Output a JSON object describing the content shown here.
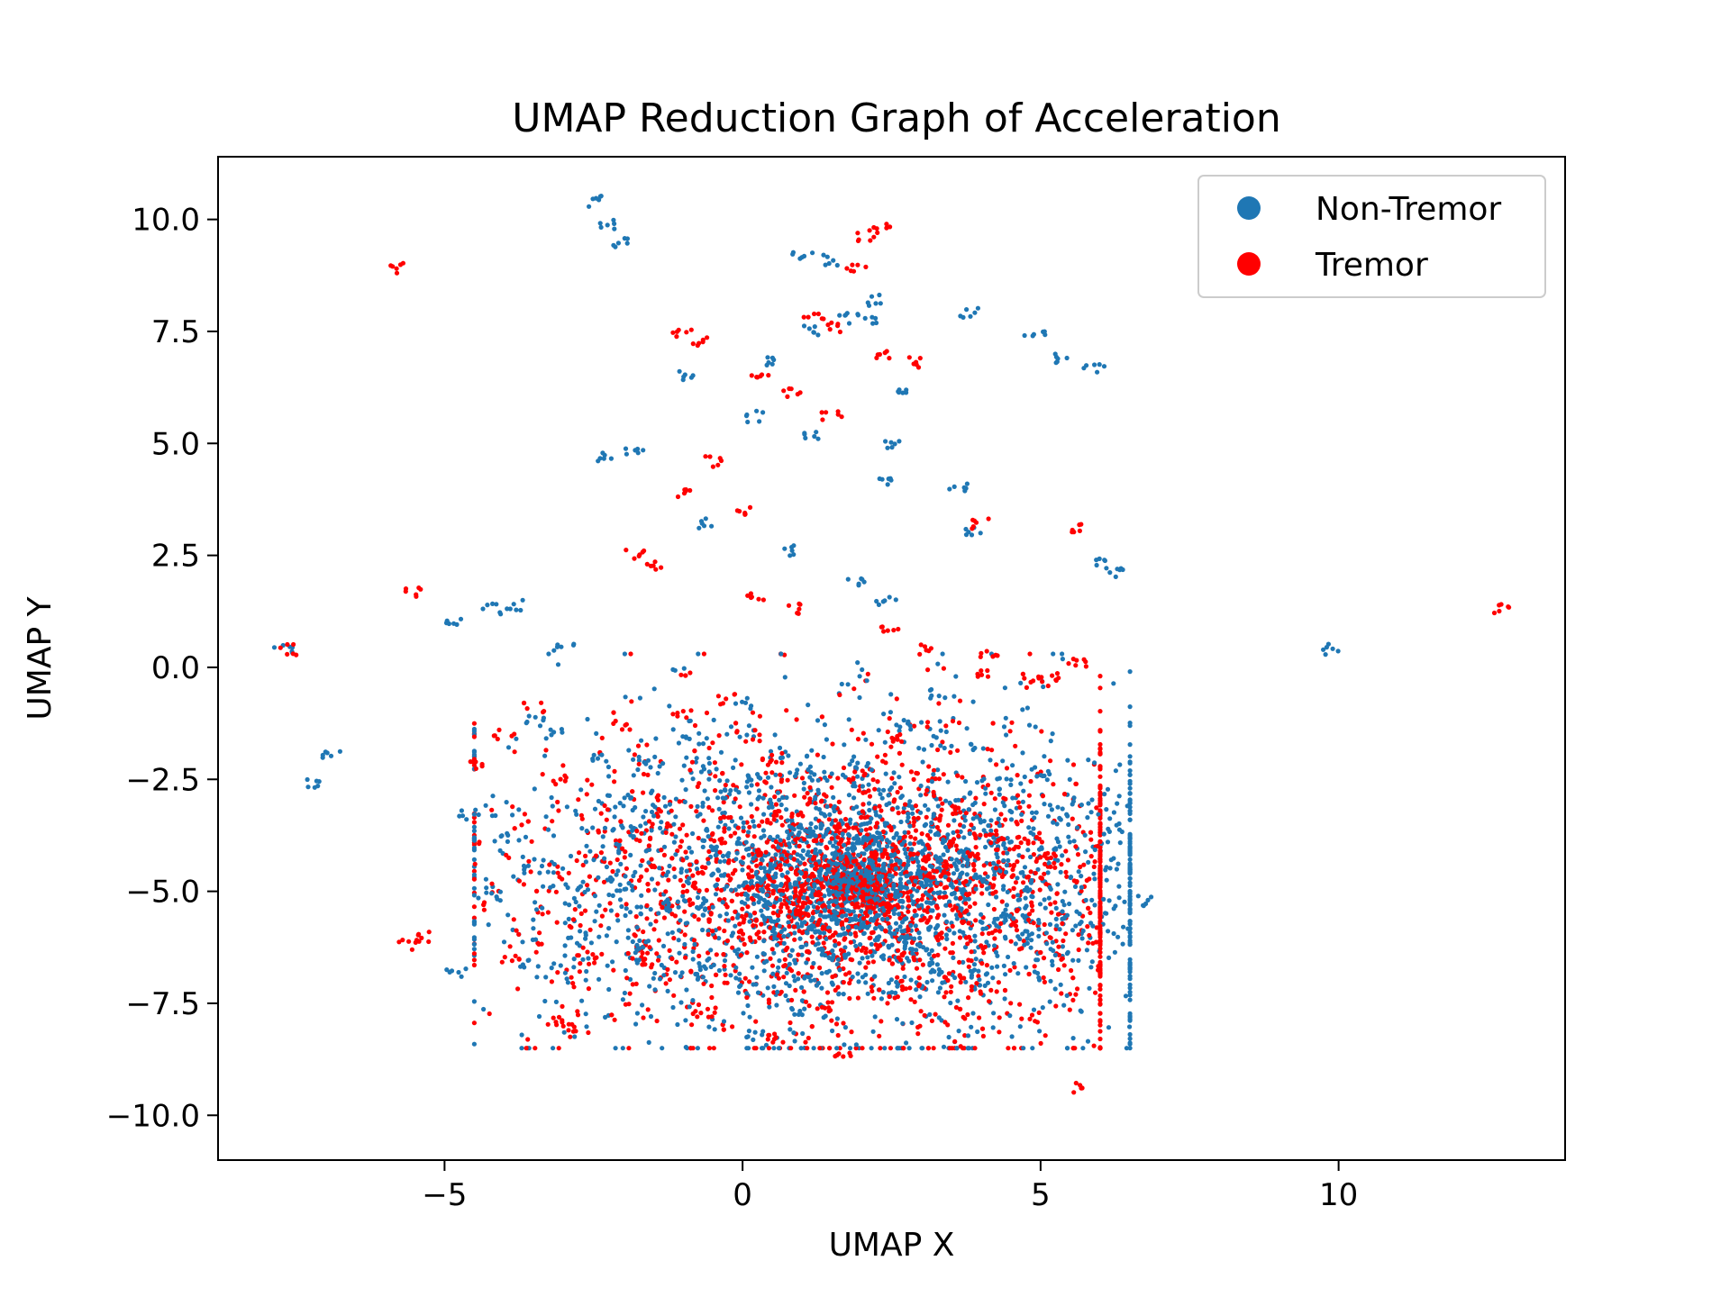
{
  "chart_data": {
    "type": "scatter",
    "title": "UMAP Reduction Graph of Acceleration",
    "xlabel": "UMAP X",
    "ylabel": "UMAP Y",
    "xlim": [
      -8.8,
      13.8
    ],
    "ylim": [
      -11.0,
      11.4
    ],
    "xticks": [
      -5,
      0,
      5,
      10
    ],
    "xtick_labels": [
      "−5",
      "0",
      "5",
      "10"
    ],
    "yticks": [
      -10.0,
      -7.5,
      -5.0,
      -2.5,
      0.0,
      2.5,
      5.0,
      7.5,
      10.0
    ],
    "ytick_labels": [
      "−10.0",
      "−7.5",
      "−5.0",
      "−2.5",
      "0.0",
      "2.5",
      "5.0",
      "7.5",
      "10.0"
    ],
    "grid": false,
    "legend_position": "top-right",
    "series": [
      {
        "name": "Non-Tremor",
        "color": "#1f77b4",
        "x": [
          -2.5,
          -2.3,
          -2.1,
          -7.7,
          -7.2,
          -6.9,
          -4.9,
          -4.2,
          -3.8,
          -4.8,
          -3.0,
          1.0,
          1.5,
          2.2,
          2.1,
          3.8,
          4.9,
          5.4,
          5.9,
          6.3,
          6.1,
          9.9,
          -2.3,
          -1.8,
          2.4,
          2.5,
          3.6,
          3.9,
          -1.0,
          0.5,
          1.2,
          1.8,
          2.6,
          0.2,
          1.1,
          -0.6,
          0.8,
          1.9,
          2.4,
          -4.6,
          -4.0,
          -3.5,
          -2.8,
          -2.0,
          -1.5,
          -3.2,
          -0.9,
          0.0,
          0.6,
          1.3,
          2.0,
          2.7,
          3.3,
          3.9,
          4.4,
          5.0,
          5.3,
          5.7,
          6.2,
          6.7,
          5.5,
          4.8,
          4.0,
          3.3,
          0.2,
          0.9,
          1.5,
          2.1,
          2.8,
          1.7,
          1.2,
          0.4,
          -0.4,
          -1.2,
          -2.0,
          -2.8,
          -3.6,
          -4.2,
          1.6,
          2.3,
          1.0,
          0.6,
          1.9,
          2.6,
          3.1,
          3.6,
          4.3,
          -1.6,
          -0.8,
          0.1,
          4.5,
          3.0,
          -0.2,
          1.4,
          2.2,
          1.8,
          0.3,
          3.7,
          -2.4,
          -3.5,
          4.7,
          1.1,
          2.9
        ],
        "y": [
          10.4,
          9.9,
          9.5,
          0.4,
          -2.6,
          -1.9,
          1.0,
          1.3,
          1.4,
          -6.8,
          0.5,
          9.2,
          9.1,
          8.2,
          7.8,
          7.9,
          7.4,
          6.9,
          6.7,
          2.1,
          2.3,
          0.4,
          4.7,
          4.8,
          4.1,
          5.0,
          4.0,
          3.0,
          6.5,
          6.8,
          7.5,
          7.8,
          6.2,
          5.6,
          5.2,
          3.2,
          2.6,
          1.9,
          1.5,
          -3.3,
          -3.8,
          -4.5,
          -4.9,
          -3.0,
          -2.2,
          -1.5,
          -1.6,
          -0.8,
          -1.9,
          -2.4,
          -2.2,
          -1.3,
          -0.6,
          -1.8,
          -2.6,
          -2.4,
          -3.4,
          -3.0,
          -3.6,
          -5.2,
          -5.5,
          -6.0,
          -6.9,
          -6.7,
          -8.2,
          -7.7,
          -6.4,
          -6.9,
          -6.1,
          -5.5,
          -5.8,
          -4.6,
          -4.1,
          -5.3,
          -5.0,
          -6.0,
          -6.6,
          -5.1,
          -4.3,
          -4.6,
          -3.6,
          -3.0,
          -4.0,
          -5.0,
          -4.8,
          -4.2,
          -3.9,
          -6.2,
          -6.8,
          -7.2,
          -5.6,
          -7.1,
          -2.8,
          -3.2,
          -3.9,
          -5.9,
          -5.2,
          -4.4,
          -2.0,
          -1.2,
          -5.0,
          -7.0,
          -6.3
        ],
        "dense_region": {
          "xrange": [
            -4.5,
            6.5
          ],
          "yrange": [
            -8.5,
            0.3
          ],
          "center": [
            1.8,
            -4.8
          ],
          "count": 2600
        }
      },
      {
        "name": "Tremor",
        "color": "#ff0000",
        "x": [
          -5.8,
          -5.5,
          -7.6,
          2.3,
          2.1,
          1.9,
          -1.0,
          -0.7,
          12.7,
          5.6,
          -2.9,
          -3.1,
          5.6,
          4.0,
          5.7,
          5.2,
          4.9,
          -5.3,
          -5.6,
          1.2,
          1.6,
          2.4,
          2.9,
          0.3,
          0.8,
          1.5,
          -0.5,
          -1.0,
          0.0,
          -1.8,
          -1.5,
          0.2,
          0.9,
          2.5,
          3.0,
          4.1,
          4.0,
          -4.5,
          -4.0,
          -3.5,
          -3.0,
          -2.0,
          -1.0,
          -0.3,
          0.5,
          1.2,
          1.9,
          2.6,
          3.4,
          4.2,
          5.1,
          4.8,
          3.6,
          2.8,
          1.4,
          0.6,
          -0.6,
          -1.5,
          -2.6,
          -3.9,
          1.7,
          2.2,
          1.0,
          0.4,
          1.6,
          -0.9,
          3.8,
          3.1,
          2.0,
          0.1
        ],
        "y": [
          8.9,
          1.7,
          0.4,
          9.8,
          9.6,
          8.9,
          7.5,
          7.3,
          1.3,
          -9.4,
          -8.0,
          -7.9,
          0.1,
          3.2,
          3.1,
          -0.2,
          -0.3,
          -6.0,
          -6.2,
          7.9,
          7.6,
          7.0,
          6.8,
          6.6,
          6.1,
          5.6,
          4.6,
          3.9,
          3.5,
          2.5,
          2.3,
          1.6,
          1.3,
          0.8,
          0.4,
          0.3,
          -0.1,
          -2.2,
          -1.5,
          -0.9,
          -2.5,
          -1.3,
          -1.0,
          -0.7,
          -2.0,
          -3.0,
          -2.4,
          -1.6,
          -3.2,
          -3.8,
          -4.2,
          -7.8,
          -6.9,
          -7.1,
          -7.5,
          -8.3,
          -7.7,
          -6.6,
          -6.4,
          -6.5,
          -8.7,
          -6.3,
          -5.5,
          -4.2,
          -3.6,
          -4.9,
          -5.6,
          -4.6,
          -5.2,
          -6.0
        ],
        "dense_region": {
          "xrange": [
            -4.5,
            6.0
          ],
          "yrange": [
            -8.5,
            0.3
          ],
          "center": [
            1.9,
            -4.9
          ],
          "count": 2600
        }
      }
    ]
  }
}
